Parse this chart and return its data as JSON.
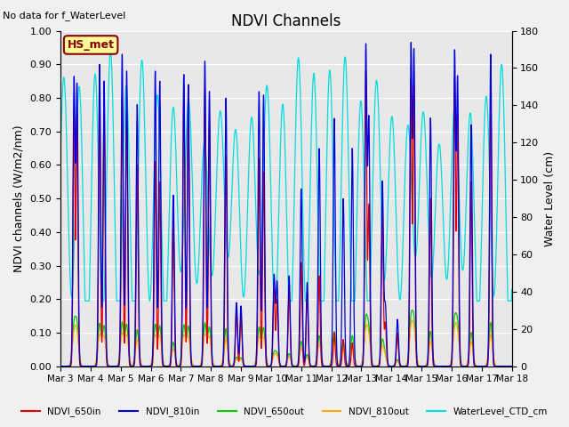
{
  "title": "NDVI Channels",
  "ylabel_left": "NDVI channels (W/m2/nm)",
  "ylabel_right": "Water Level (cm)",
  "ylim_left": [
    0.0,
    1.0
  ],
  "ylim_right": [
    0,
    180
  ],
  "annotation_box": "HS_met",
  "no_data_text": "No data for f_WaterLevel",
  "colors": {
    "NDVI_650in": "#dd0000",
    "NDVI_810in": "#0000dd",
    "NDVI_650out": "#00cc00",
    "NDVI_810out": "#ffaa00",
    "WaterLevel_CTD_cm": "#00dddd"
  },
  "legend_labels": [
    "NDVI_650in",
    "NDVI_810in",
    "NDVI_650out",
    "NDVI_810out",
    "WaterLevel_CTD_cm"
  ],
  "xtick_labels": [
    "Mar 3",
    "Mar 4",
    "Mar 5",
    "Mar 6",
    "Mar 7",
    "Mar 8",
    "Mar 9",
    "Mar 10",
    "Mar 11",
    "Mar 12",
    "Mar 13",
    "Mar 14",
    "Mar 15",
    "Mar 16",
    "Mar 17",
    "Mar 18"
  ],
  "background_color": "#e8e8e8",
  "fig_background": "#f0f0f0",
  "grid_color": "#ffffff",
  "yticks_left": [
    0.0,
    0.1,
    0.2,
    0.3,
    0.4,
    0.5,
    0.6,
    0.7,
    0.8,
    0.9,
    1.0
  ],
  "yticks_right": [
    0,
    20,
    40,
    60,
    80,
    100,
    120,
    140,
    160,
    180
  ]
}
